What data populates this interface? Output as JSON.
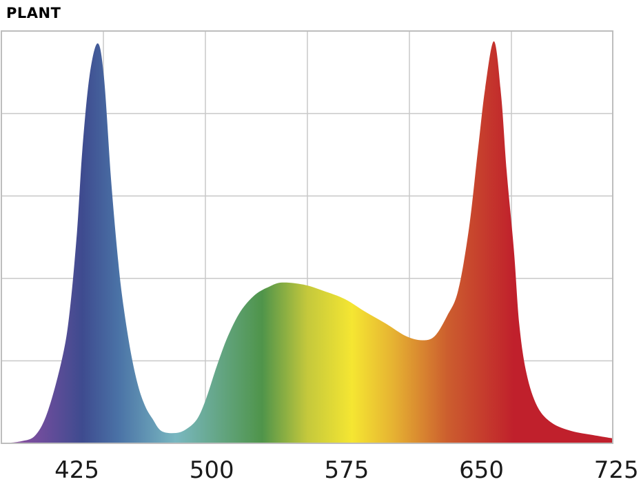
{
  "chart_data": {
    "type": "area",
    "title": "PLANT",
    "xlabel": "",
    "ylabel": "",
    "xlim": [
      383,
      723
    ],
    "ylim": [
      0,
      1
    ],
    "xticks": [
      425,
      500,
      575,
      650,
      725
    ],
    "grid": true,
    "x": [
      383,
      394,
      402,
      409,
      417,
      421,
      425,
      428,
      432,
      436.5,
      440,
      444,
      448,
      451,
      455,
      459,
      463,
      467,
      472,
      480,
      486,
      492,
      497,
      503,
      509,
      516,
      524,
      532,
      539,
      551,
      562,
      574,
      585,
      597,
      608,
      617,
      624,
      631,
      637,
      643,
      648,
      652,
      657,
      661,
      664,
      668,
      671,
      675,
      681,
      689,
      700,
      712,
      723
    ],
    "y": [
      0,
      0.005,
      0.02,
      0.08,
      0.21,
      0.32,
      0.51,
      0.71,
      0.89,
      0.97,
      0.89,
      0.64,
      0.44,
      0.33,
      0.22,
      0.14,
      0.09,
      0.06,
      0.03,
      0.025,
      0.035,
      0.06,
      0.11,
      0.19,
      0.26,
      0.32,
      0.36,
      0.38,
      0.39,
      0.385,
      0.37,
      0.35,
      0.32,
      0.29,
      0.26,
      0.25,
      0.26,
      0.31,
      0.37,
      0.52,
      0.71,
      0.86,
      0.975,
      0.84,
      0.66,
      0.47,
      0.29,
      0.17,
      0.09,
      0.05,
      0.03,
      0.02,
      0.012
    ],
    "spectrum_colors": [
      {
        "nm": 390,
        "color": "#8a4f9e"
      },
      {
        "nm": 405,
        "color": "#6e4d9c"
      },
      {
        "nm": 428,
        "color": "#3e4b8f"
      },
      {
        "nm": 448,
        "color": "#4a72a6"
      },
      {
        "nm": 480,
        "color": "#79b7c0"
      },
      {
        "nm": 528,
        "color": "#4f944a"
      },
      {
        "nm": 553,
        "color": "#c4c83c"
      },
      {
        "nm": 578,
        "color": "#f5e632"
      },
      {
        "nm": 601,
        "color": "#e6b232"
      },
      {
        "nm": 631,
        "color": "#cc5e2e"
      },
      {
        "nm": 668,
        "color": "#c0202c"
      },
      {
        "nm": 723,
        "color": "#c0202c"
      }
    ],
    "grid_color": "#c8c8c8"
  }
}
